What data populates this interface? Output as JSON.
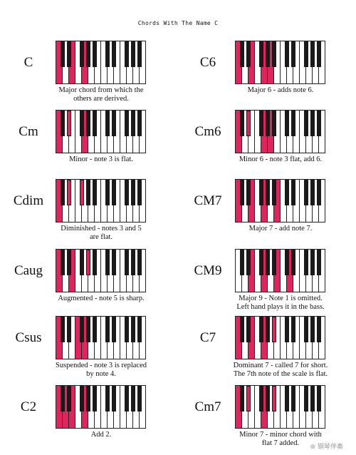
{
  "title": "Chords With The Name C",
  "colors": {
    "highlight": "#e0245e",
    "black_key": "#1a1a1a"
  },
  "left": [
    {
      "name": "C",
      "caption": [
        "Major chord from which the",
        "others are derived."
      ],
      "white_on": [
        0,
        2,
        4
      ],
      "black_on": []
    },
    {
      "name": "Cm",
      "caption": [
        "Minor - note 3 is flat."
      ],
      "white_on": [
        0,
        4
      ],
      "black_on": [
        1
      ]
    },
    {
      "name": "Cdim",
      "caption": [
        "Diminished - notes 3 and 5",
        "are flat."
      ],
      "white_on": [
        0
      ],
      "black_on": [
        1,
        2
      ]
    },
    {
      "name": "Caug",
      "caption": [
        "Augmented - note 5 is sharp."
      ],
      "white_on": [
        0,
        2
      ],
      "black_on": [
        3
      ]
    },
    {
      "name": "Csus",
      "caption": [
        "Suspended - note 3 is replaced",
        "by note 4."
      ],
      "white_on": [
        0,
        3,
        4
      ],
      "black_on": []
    },
    {
      "name": "C2",
      "caption": [
        "Add 2."
      ],
      "white_on": [
        0,
        1,
        2,
        4
      ],
      "black_on": []
    }
  ],
  "right": [
    {
      "name": "C6",
      "caption": [
        "Major 6 - adds note 6."
      ],
      "white_on": [
        0,
        2,
        4,
        5
      ],
      "black_on": []
    },
    {
      "name": "Cm6",
      "caption": [
        "Minor 6 - note 3 flat, add 6."
      ],
      "white_on": [
        0,
        4,
        5
      ],
      "black_on": [
        1
      ]
    },
    {
      "name": "CM7",
      "caption": [
        "Major 7 - add note 7."
      ],
      "white_on": [
        0,
        2,
        4,
        6
      ],
      "black_on": []
    },
    {
      "name": "CM9",
      "caption": [
        "Major 9 - Note 1 is omitted.",
        "Left hand plays it in the bass."
      ],
      "white_on": [
        2,
        4,
        6,
        8
      ],
      "black_on": []
    },
    {
      "name": "C7",
      "caption": [
        "Dominant 7 - called 7 for short.",
        "The 7th note of the scale is flat."
      ],
      "white_on": [
        0,
        2,
        4
      ],
      "black_on": [
        4
      ]
    },
    {
      "name": "Cm7",
      "caption": [
        "Minor 7 - minor chord with",
        "flat 7 added."
      ],
      "white_on": [
        0,
        4
      ],
      "black_on": [
        1,
        4
      ]
    }
  ],
  "watermark": "⊛ 钢琴伴奏"
}
